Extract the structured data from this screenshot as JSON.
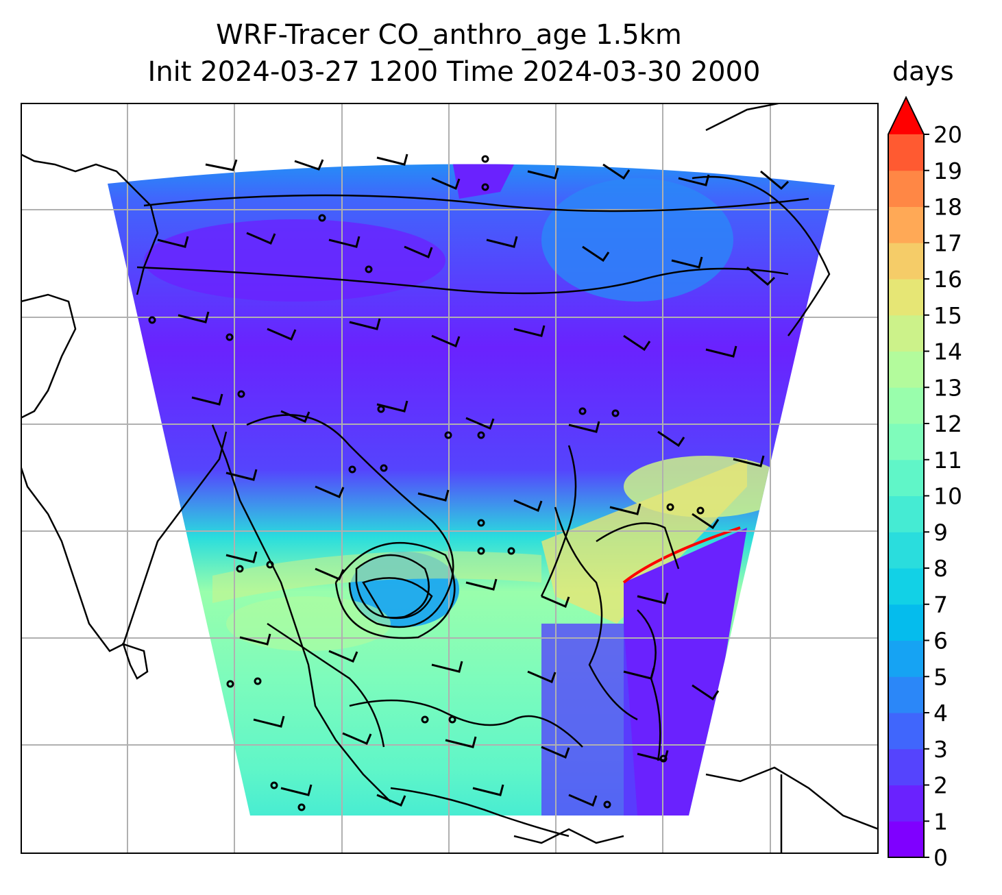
{
  "title": {
    "line1": "WRF-Tracer CO_anthro_age 1.5km",
    "line2": "Init 2024-03-27 1200 Time 2024-03-30 2000"
  },
  "colorbar": {
    "unit_label": "days",
    "ticks": [
      "0",
      "1",
      "2",
      "3",
      "4",
      "5",
      "6",
      "7",
      "8",
      "9",
      "10",
      "11",
      "12",
      "13",
      "14",
      "15",
      "16",
      "17",
      "18",
      "19",
      "20"
    ],
    "extend": "max",
    "colormap": "rainbow",
    "colors": [
      "#7f00ff",
      "#6a22fe",
      "#5544fd",
      "#4066fc",
      "#2b87f8",
      "#16a3f3",
      "#05bced",
      "#12d1e6",
      "#2adddd",
      "#45ebd3",
      "#60f6c8",
      "#7ffcbb",
      "#99feac",
      "#b3fb9c",
      "#ccf28a",
      "#e6e675",
      "#f5cc68",
      "#ffa956",
      "#ff8745",
      "#ff5a31",
      "#ff2a18",
      "#ff0000"
    ]
  },
  "map": {
    "gridlines": true,
    "variable": "CO_anthro_age",
    "overlays": [
      "wind barbs",
      "coastlines",
      "contours"
    ],
    "colors": {
      "grid": "#b0b0b0",
      "coast": "#000000",
      "frame": "#000000"
    }
  }
}
